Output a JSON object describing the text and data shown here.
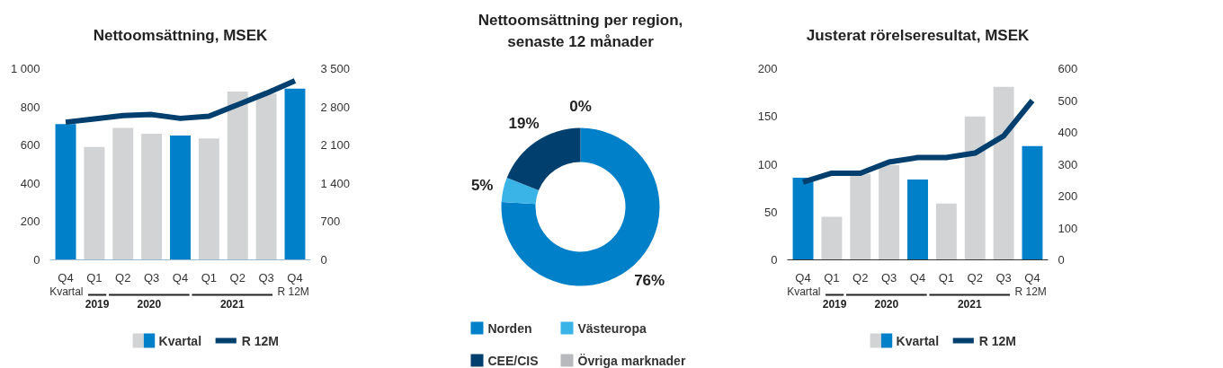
{
  "chart_data": [
    {
      "type": "bar",
      "title": "Nettoomsättning, MSEK",
      "categories": [
        "Q4",
        "Q1",
        "Q2",
        "Q3",
        "Q4",
        "Q1",
        "Q2",
        "Q3",
        "Q4"
      ],
      "series": [
        {
          "name": "Kvartal",
          "type": "bar",
          "colors": [
            "#0080c8",
            "#d1d3d4",
            "#d1d3d4",
            "#d1d3d4",
            "#0080c8",
            "#d1d3d4",
            "#d1d3d4",
            "#d1d3d4",
            "#0080c8"
          ],
          "values": [
            710,
            590,
            690,
            660,
            650,
            635,
            880,
            870,
            895
          ]
        },
        {
          "name": "R 12M",
          "type": "line",
          "axis": "y2",
          "color": "#003f6e",
          "values": [
            2520,
            2580,
            2640,
            2660,
            2590,
            2630,
            2840,
            3050,
            3280
          ]
        }
      ],
      "ylim": [
        0,
        1000
      ],
      "yticks": [
        0,
        200,
        400,
        600,
        800,
        {
          "value": 1000,
          "label": "1 000"
        }
      ],
      "y2lim": [
        0,
        3500
      ],
      "y2ticks": [
        0,
        700,
        {
          "value": 1400,
          "label": "1 400"
        },
        {
          "value": 2100,
          "label": "2 100"
        },
        {
          "value": 2800,
          "label": "2 800"
        },
        {
          "value": 3500,
          "label": "3 500"
        }
      ],
      "annotations": [
        "Kvartal",
        "R 12M",
        "2019",
        "2020",
        "2021"
      ],
      "legend": "bottom",
      "marker": "none",
      "line_style": "solid"
    },
    {
      "type": "donut",
      "title": "Nettoomsättning per region,\nsenaste 12 månader",
      "categories": [
        "Norden",
        "Västeuropa",
        "CEE/CIS",
        "Övriga marknader"
      ],
      "values": [
        76,
        5,
        19,
        0
      ],
      "colors": [
        "#0080c8",
        "#3ab4e6",
        "#003f6e",
        "#b8b9bd"
      ],
      "value_labels": [
        "76%",
        "5%",
        "19%",
        "0%"
      ],
      "legend": "bottom"
    },
    {
      "type": "bar",
      "title": "Justerat rörelseresultat, MSEK",
      "categories": [
        "Q4",
        "Q1",
        "Q2",
        "Q3",
        "Q4",
        "Q1",
        "Q2",
        "Q3",
        "Q4"
      ],
      "series": [
        {
          "name": "Kvartal",
          "type": "bar",
          "colors": [
            "#0080c8",
            "#d1d3d4",
            "#d1d3d4",
            "#d1d3d4",
            "#0080c8",
            "#d1d3d4",
            "#d1d3d4",
            "#d1d3d4",
            "#0080c8"
          ],
          "values": [
            86,
            45,
            90,
            99,
            84,
            59,
            150,
            181,
            119
          ]
        },
        {
          "name": "R 12M",
          "type": "line",
          "axis": "y2",
          "color": "#003f6e",
          "values": [
            244,
            272,
            272,
            307,
            321,
            321,
            335,
            389,
            500
          ]
        }
      ],
      "ylim": [
        0,
        200
      ],
      "yticks": [
        0,
        50,
        100,
        150,
        200
      ],
      "y2lim": [
        0,
        600
      ],
      "y2ticks": [
        0,
        100,
        200,
        300,
        400,
        500,
        600
      ],
      "annotations": [
        "Kvartal",
        "R 12M",
        "2019",
        "2020",
        "2021"
      ],
      "legend": "bottom",
      "marker": "none",
      "line_style": "solid"
    }
  ]
}
